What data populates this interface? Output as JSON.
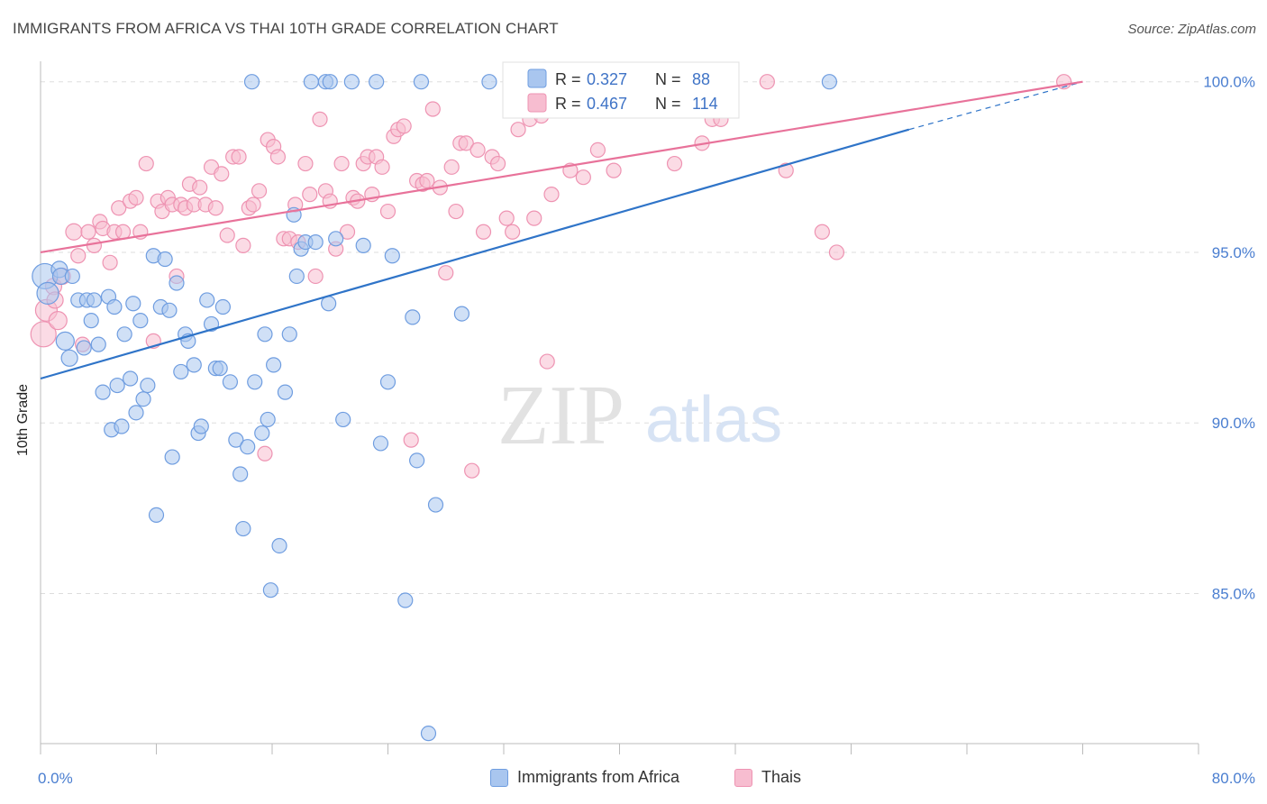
{
  "title": "IMMIGRANTS FROM AFRICA VS THAI 10TH GRADE CORRELATION CHART",
  "source": "Source: ZipAtlas.com",
  "watermark": {
    "zip": "ZIP",
    "atlas": "atlas"
  },
  "colors": {
    "blue_fill": "#a9c6ef",
    "blue_stroke": "#6f9de0",
    "blue_line": "#2f74c8",
    "pink_fill": "#f7bdd0",
    "pink_stroke": "#ee93b2",
    "pink_line": "#e8729a",
    "tick_text": "#4a7ed0",
    "grid": "#dddddd"
  },
  "legend": {
    "r_label": "R =",
    "n_label": "N =",
    "rows": [
      {
        "r": "0.327",
        "n": "88",
        "color": "blue"
      },
      {
        "r": "0.467",
        "n": "114",
        "color": "pink"
      }
    ]
  },
  "bottom_legend": [
    {
      "label": "Immigrants from Africa",
      "color": "blue"
    },
    {
      "label": "Thais",
      "color": "pink"
    }
  ],
  "chart_data": {
    "type": "scatter",
    "title": "IMMIGRANTS FROM AFRICA VS THAI 10TH GRADE CORRELATION CHART",
    "xlabel": "",
    "ylabel": "10th Grade",
    "xlim": [
      0,
      80
    ],
    "ylim": [
      80.6,
      100.6
    ],
    "x_tick_labels": [
      {
        "value": 0,
        "label": "0.0%"
      },
      {
        "value": 80,
        "label": "80.0%"
      }
    ],
    "y_tick_labels": [
      {
        "value": 100,
        "label": "100.0%"
      },
      {
        "value": 95,
        "label": "95.0%"
      },
      {
        "value": 90,
        "label": "90.0%"
      },
      {
        "value": 85,
        "label": "85.0%"
      }
    ],
    "grid": true,
    "legend_position": "top-center",
    "series": [
      {
        "name": "Immigrants from Africa",
        "color": "blue",
        "r": 0.327,
        "n": 88,
        "trend": {
          "x0": 0,
          "y0": 91.3,
          "x1": 60,
          "y1": 98.6,
          "dashed_to_x": 72,
          "dashed_to_y": 100.0
        },
        "points": [
          [
            0.3,
            94.3,
            14
          ],
          [
            0.5,
            93.8,
            12
          ],
          [
            1.3,
            94.5,
            9
          ],
          [
            1.4,
            94.3,
            9
          ],
          [
            1.7,
            92.4,
            10
          ],
          [
            2.0,
            91.9,
            9
          ],
          [
            2.2,
            94.3,
            8
          ],
          [
            2.6,
            93.6,
            8
          ],
          [
            3.0,
            92.2,
            8
          ],
          [
            3.2,
            93.6,
            8
          ],
          [
            3.5,
            93.0,
            8
          ],
          [
            3.7,
            93.6,
            8
          ],
          [
            4.0,
            92.3,
            8
          ],
          [
            4.3,
            90.9,
            8
          ],
          [
            4.7,
            93.7,
            8
          ],
          [
            4.9,
            89.8,
            8
          ],
          [
            5.1,
            93.4,
            8
          ],
          [
            5.3,
            91.1,
            8
          ],
          [
            5.6,
            89.9,
            8
          ],
          [
            5.8,
            92.6,
            8
          ],
          [
            6.2,
            91.3,
            8
          ],
          [
            6.4,
            93.5,
            8
          ],
          [
            6.6,
            90.3,
            8
          ],
          [
            6.9,
            93.0,
            8
          ],
          [
            7.1,
            90.7,
            8
          ],
          [
            7.4,
            91.1,
            8
          ],
          [
            7.8,
            94.9,
            8
          ],
          [
            8.0,
            87.3,
            8
          ],
          [
            8.3,
            93.4,
            8
          ],
          [
            8.6,
            94.8,
            8
          ],
          [
            8.9,
            93.3,
            8
          ],
          [
            9.1,
            89.0,
            8
          ],
          [
            9.4,
            94.1,
            8
          ],
          [
            9.7,
            91.5,
            8
          ],
          [
            10.0,
            92.6,
            8
          ],
          [
            10.2,
            92.4,
            8
          ],
          [
            10.6,
            91.7,
            8
          ],
          [
            10.9,
            89.7,
            8
          ],
          [
            11.1,
            89.9,
            8
          ],
          [
            11.5,
            93.6,
            8
          ],
          [
            11.8,
            92.9,
            8
          ],
          [
            12.1,
            91.6,
            8
          ],
          [
            12.4,
            91.6,
            8
          ],
          [
            12.6,
            93.4,
            8
          ],
          [
            13.1,
            91.2,
            8
          ],
          [
            13.5,
            89.5,
            8
          ],
          [
            13.8,
            88.5,
            8
          ],
          [
            14.0,
            86.9,
            8
          ],
          [
            14.3,
            89.3,
            8
          ],
          [
            14.6,
            100.0,
            8
          ],
          [
            14.8,
            91.2,
            8
          ],
          [
            15.3,
            89.7,
            8
          ],
          [
            15.5,
            92.6,
            8
          ],
          [
            15.7,
            90.1,
            8
          ],
          [
            15.9,
            85.1,
            8
          ],
          [
            16.1,
            91.7,
            8
          ],
          [
            16.5,
            86.4,
            8
          ],
          [
            16.9,
            90.9,
            8
          ],
          [
            17.2,
            92.6,
            8
          ],
          [
            17.5,
            96.1,
            8
          ],
          [
            17.7,
            94.3,
            8
          ],
          [
            18.0,
            95.1,
            8
          ],
          [
            18.3,
            95.3,
            8
          ],
          [
            18.7,
            100.0,
            8
          ],
          [
            19.0,
            95.3,
            8
          ],
          [
            19.7,
            100.0,
            8
          ],
          [
            19.9,
            93.5,
            8
          ],
          [
            20.0,
            100.0,
            8
          ],
          [
            20.4,
            95.4,
            8
          ],
          [
            20.9,
            90.1,
            8
          ],
          [
            21.5,
            100.0,
            8
          ],
          [
            22.3,
            95.2,
            8
          ],
          [
            23.2,
            100.0,
            8
          ],
          [
            23.5,
            89.4,
            8
          ],
          [
            24.0,
            91.2,
            8
          ],
          [
            24.3,
            94.9,
            8
          ],
          [
            25.2,
            84.8,
            8
          ],
          [
            25.7,
            93.1,
            8
          ],
          [
            26.0,
            88.9,
            8
          ],
          [
            26.3,
            100.0,
            8
          ],
          [
            26.8,
            80.9,
            8
          ],
          [
            27.3,
            87.6,
            8
          ],
          [
            29.1,
            93.2,
            8
          ],
          [
            31.0,
            100.0,
            8
          ],
          [
            32.5,
            100.0,
            8
          ],
          [
            33.0,
            100.0,
            8
          ],
          [
            40.0,
            100.0,
            8
          ],
          [
            54.5,
            100.0,
            8
          ]
        ]
      },
      {
        "name": "Thais",
        "color": "pink",
        "r": 0.467,
        "n": 114,
        "trend": {
          "x0": 0,
          "y0": 95.0,
          "x1": 72,
          "y1": 100.0
        },
        "points": [
          [
            0.2,
            92.6,
            14
          ],
          [
            0.4,
            93.3,
            12
          ],
          [
            0.9,
            94.0,
            9
          ],
          [
            1.0,
            93.6,
            9
          ],
          [
            1.2,
            93.0,
            10
          ],
          [
            1.5,
            94.3,
            9
          ],
          [
            2.3,
            95.6,
            9
          ],
          [
            2.6,
            94.9,
            8
          ],
          [
            2.9,
            92.3,
            8
          ],
          [
            3.3,
            95.6,
            8
          ],
          [
            3.7,
            95.2,
            8
          ],
          [
            4.1,
            95.9,
            8
          ],
          [
            4.3,
            95.7,
            8
          ],
          [
            4.8,
            94.7,
            8
          ],
          [
            5.1,
            95.6,
            8
          ],
          [
            5.4,
            96.3,
            8
          ],
          [
            5.7,
            95.6,
            8
          ],
          [
            6.2,
            96.5,
            8
          ],
          [
            6.6,
            96.6,
            8
          ],
          [
            6.9,
            95.6,
            8
          ],
          [
            7.3,
            97.6,
            8
          ],
          [
            7.8,
            92.4,
            8
          ],
          [
            8.1,
            96.5,
            8
          ],
          [
            8.4,
            96.2,
            8
          ],
          [
            8.8,
            96.6,
            8
          ],
          [
            9.1,
            96.4,
            8
          ],
          [
            9.4,
            94.3,
            8
          ],
          [
            9.7,
            96.4,
            8
          ],
          [
            10.0,
            96.3,
            8
          ],
          [
            10.3,
            97.0,
            8
          ],
          [
            10.6,
            96.4,
            8
          ],
          [
            11.0,
            96.9,
            8
          ],
          [
            11.4,
            96.4,
            8
          ],
          [
            11.8,
            97.5,
            8
          ],
          [
            12.1,
            96.3,
            8
          ],
          [
            12.5,
            97.3,
            8
          ],
          [
            12.9,
            95.5,
            8
          ],
          [
            13.3,
            97.8,
            8
          ],
          [
            13.7,
            97.8,
            8
          ],
          [
            14.0,
            95.2,
            8
          ],
          [
            14.4,
            96.3,
            8
          ],
          [
            14.7,
            96.4,
            8
          ],
          [
            15.1,
            96.8,
            8
          ],
          [
            15.5,
            89.1,
            8
          ],
          [
            15.7,
            98.3,
            8
          ],
          [
            16.1,
            98.1,
            8
          ],
          [
            16.4,
            97.8,
            8
          ],
          [
            16.8,
            95.4,
            8
          ],
          [
            17.2,
            95.4,
            8
          ],
          [
            17.6,
            96.4,
            8
          ],
          [
            17.8,
            95.3,
            8
          ],
          [
            18.3,
            97.6,
            8
          ],
          [
            18.6,
            96.7,
            8
          ],
          [
            19.0,
            94.3,
            8
          ],
          [
            19.3,
            98.9,
            8
          ],
          [
            19.7,
            96.8,
            8
          ],
          [
            20.0,
            96.5,
            8
          ],
          [
            20.4,
            95.1,
            8
          ],
          [
            20.8,
            97.6,
            8
          ],
          [
            21.2,
            95.6,
            8
          ],
          [
            21.6,
            96.6,
            8
          ],
          [
            21.9,
            96.5,
            8
          ],
          [
            22.3,
            97.6,
            8
          ],
          [
            22.6,
            97.8,
            8
          ],
          [
            22.9,
            96.7,
            8
          ],
          [
            23.2,
            97.8,
            8
          ],
          [
            23.6,
            97.5,
            8
          ],
          [
            24.0,
            96.2,
            8
          ],
          [
            24.4,
            98.4,
            8
          ],
          [
            24.7,
            98.6,
            8
          ],
          [
            25.1,
            98.7,
            8
          ],
          [
            25.6,
            89.5,
            8
          ],
          [
            26.0,
            97.1,
            8
          ],
          [
            26.4,
            97.0,
            8
          ],
          [
            26.7,
            97.1,
            8
          ],
          [
            27.1,
            99.2,
            8
          ],
          [
            27.6,
            96.9,
            8
          ],
          [
            28.0,
            94.4,
            8
          ],
          [
            28.4,
            97.5,
            8
          ],
          [
            28.7,
            96.2,
            8
          ],
          [
            29.0,
            98.2,
            8
          ],
          [
            29.4,
            98.2,
            8
          ],
          [
            29.8,
            88.6,
            8
          ],
          [
            30.2,
            98.0,
            8
          ],
          [
            30.6,
            95.6,
            8
          ],
          [
            31.2,
            97.8,
            8
          ],
          [
            31.6,
            97.6,
            8
          ],
          [
            32.2,
            96.0,
            8
          ],
          [
            32.6,
            95.6,
            8
          ],
          [
            33.0,
            98.6,
            8
          ],
          [
            33.4,
            100.0,
            8
          ],
          [
            33.8,
            98.9,
            8
          ],
          [
            34.1,
            96.0,
            8
          ],
          [
            34.4,
            99.2,
            8
          ],
          [
            35.0,
            91.8,
            8
          ],
          [
            35.3,
            96.7,
            8
          ],
          [
            36.0,
            100.0,
            8
          ],
          [
            36.6,
            97.4,
            8
          ],
          [
            37.5,
            97.2,
            8
          ],
          [
            38.5,
            98.0,
            8
          ],
          [
            39.2,
            99.6,
            8
          ],
          [
            39.6,
            97.4,
            8
          ],
          [
            41.0,
            100.0,
            8
          ],
          [
            42.0,
            100.0,
            8
          ],
          [
            43.8,
            97.6,
            8
          ],
          [
            45.7,
            98.2,
            8
          ],
          [
            46.4,
            98.9,
            8
          ],
          [
            47.0,
            98.9,
            8
          ],
          [
            50.2,
            100.0,
            8
          ],
          [
            51.5,
            97.4,
            8
          ],
          [
            54.0,
            95.6,
            8
          ],
          [
            55.0,
            95.0,
            8
          ],
          [
            70.7,
            100.0,
            8
          ],
          [
            34.6,
            99.0,
            8
          ]
        ]
      }
    ]
  }
}
